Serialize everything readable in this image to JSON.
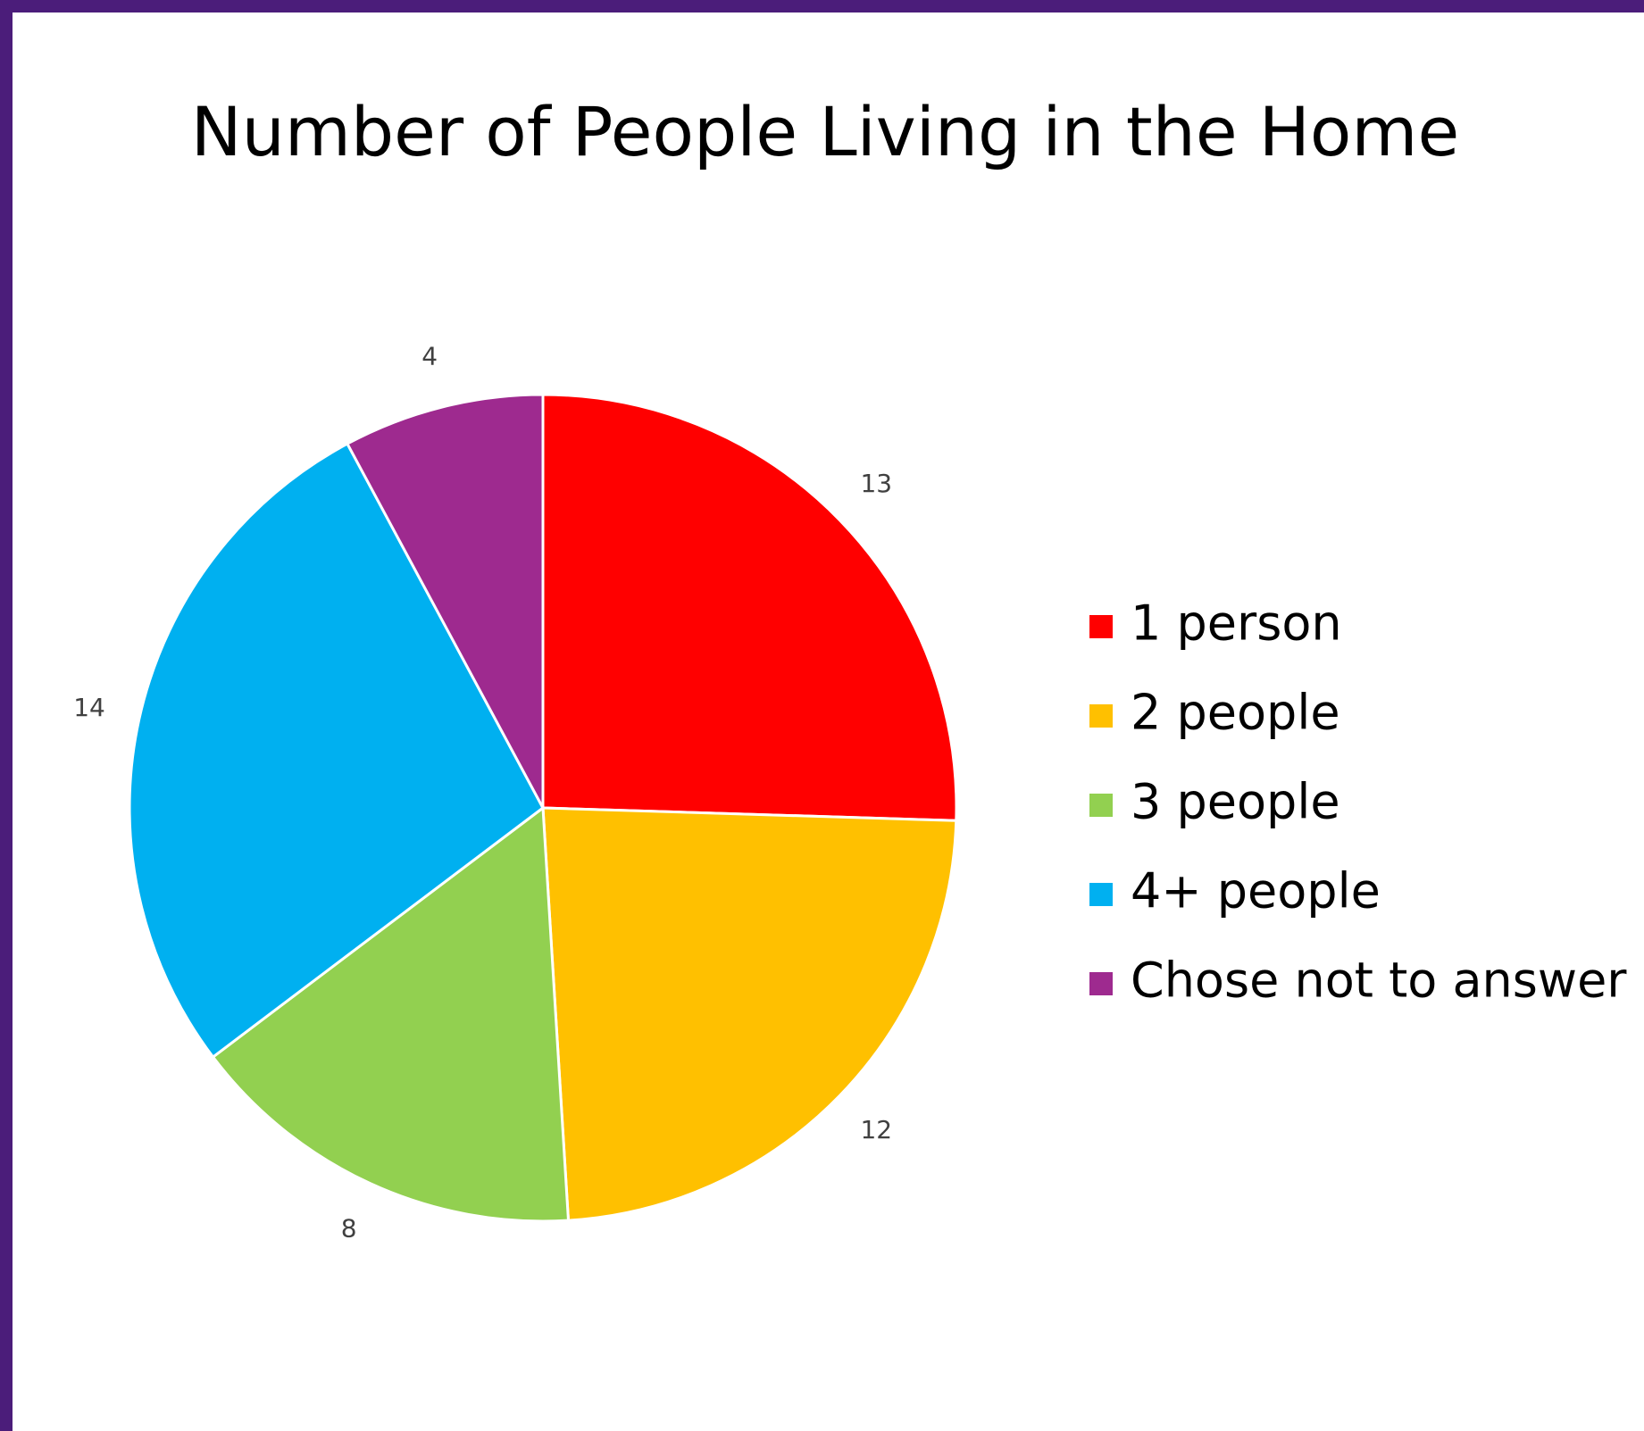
{
  "chart_data": {
    "type": "pie",
    "title": "Number of People Living in the Home",
    "categories": [
      "1 person",
      "2 people",
      "3 people",
      "4+ people",
      "Chose not to answer"
    ],
    "values": [
      13,
      12,
      8,
      14,
      4
    ],
    "colors": [
      "#ff0000",
      "#ffc000",
      "#92d050",
      "#00b0f0",
      "#9e2a8f"
    ],
    "legend": "right"
  }
}
